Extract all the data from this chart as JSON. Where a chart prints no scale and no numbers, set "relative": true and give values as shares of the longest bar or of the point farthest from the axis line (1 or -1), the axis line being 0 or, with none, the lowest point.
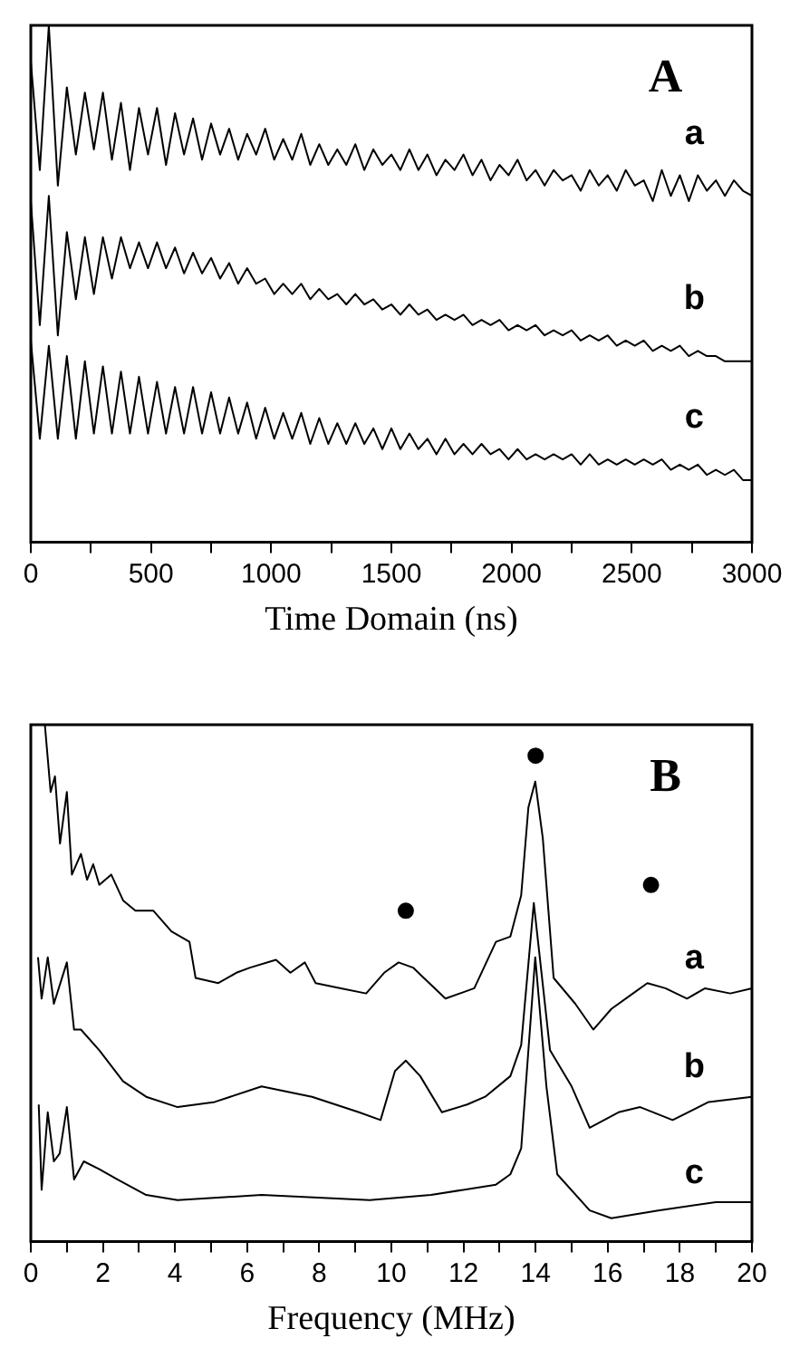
{
  "chart_data": [
    {
      "type": "line",
      "relative": true,
      "xlabel": "Time Domain (ns)",
      "annotations": [
        "A"
      ],
      "marker": "none",
      "grid": false,
      "legend": false,
      "tick_labels": "x",
      "xlim": [
        0,
        3000
      ],
      "xticks": [
        0,
        {
          "value": 250,
          "label": null
        },
        500,
        {
          "value": 750,
          "label": null
        },
        1000,
        {
          "value": 1250,
          "label": null
        },
        1500,
        {
          "value": 1750,
          "label": null
        },
        2000,
        {
          "value": 2250,
          "label": null
        },
        2500,
        {
          "value": 2750,
          "label": null
        },
        3000
      ],
      "x": [
        0,
        37.5,
        75,
        112.5,
        150,
        187.5,
        225,
        262.5,
        300,
        337.5,
        375,
        412.5,
        450,
        487.5,
        525,
        562.5,
        600,
        637.5,
        675,
        712.5,
        750,
        787.5,
        825,
        862.5,
        900,
        937.5,
        975,
        1012.5,
        1050,
        1087.5,
        1125,
        1162.5,
        1200,
        1237.5,
        1275,
        1312.5,
        1350,
        1387.5,
        1425,
        1462.5,
        1500,
        1537.5,
        1575,
        1612.5,
        1650,
        1687.5,
        1725,
        1762.5,
        1800,
        1837.5,
        1875,
        1912.5,
        1950,
        1987.5,
        2025,
        2062.5,
        2100,
        2137.5,
        2175,
        2212.5,
        2250,
        2287.5,
        2325,
        2362.5,
        2400,
        2437.5,
        2475,
        2512.5,
        2550,
        2587.5,
        2625,
        2662.5,
        2700,
        2737.5,
        2775,
        2812.5,
        2850,
        2887.5,
        2925,
        2962.5,
        3000
      ],
      "series": [
        {
          "name": "a",
          "color": "#000000",
          "values": [
            0.93,
            0.72,
            1.0,
            0.69,
            0.88,
            0.75,
            0.87,
            0.76,
            0.87,
            0.74,
            0.85,
            0.72,
            0.84,
            0.75,
            0.84,
            0.73,
            0.83,
            0.75,
            0.82,
            0.74,
            0.81,
            0.75,
            0.8,
            0.74,
            0.79,
            0.75,
            0.8,
            0.74,
            0.78,
            0.74,
            0.79,
            0.73,
            0.77,
            0.73,
            0.76,
            0.73,
            0.77,
            0.72,
            0.76,
            0.73,
            0.75,
            0.72,
            0.76,
            0.72,
            0.75,
            0.71,
            0.74,
            0.72,
            0.75,
            0.71,
            0.74,
            0.7,
            0.73,
            0.71,
            0.74,
            0.7,
            0.72,
            0.69,
            0.72,
            0.7,
            0.71,
            0.68,
            0.72,
            0.69,
            0.71,
            0.68,
            0.72,
            0.69,
            0.7,
            0.66,
            0.72,
            0.67,
            0.71,
            0.66,
            0.71,
            0.68,
            0.7,
            0.67,
            0.7,
            0.68,
            0.67
          ]
        },
        {
          "name": "b",
          "color": "#000000",
          "values": [
            0.66,
            0.42,
            0.67,
            0.4,
            0.6,
            0.47,
            0.59,
            0.48,
            0.59,
            0.51,
            0.59,
            0.53,
            0.58,
            0.53,
            0.58,
            0.53,
            0.57,
            0.52,
            0.56,
            0.52,
            0.55,
            0.51,
            0.54,
            0.5,
            0.53,
            0.5,
            0.51,
            0.48,
            0.5,
            0.48,
            0.5,
            0.47,
            0.49,
            0.47,
            0.48,
            0.46,
            0.48,
            0.46,
            0.47,
            0.45,
            0.46,
            0.44,
            0.46,
            0.44,
            0.45,
            0.43,
            0.44,
            0.43,
            0.44,
            0.42,
            0.43,
            0.42,
            0.43,
            0.41,
            0.42,
            0.41,
            0.42,
            0.4,
            0.41,
            0.4,
            0.41,
            0.39,
            0.4,
            0.39,
            0.4,
            0.38,
            0.39,
            0.38,
            0.39,
            0.37,
            0.38,
            0.37,
            0.38,
            0.36,
            0.37,
            0.36,
            0.36,
            0.35,
            0.35,
            0.35,
            0.35
          ]
        },
        {
          "name": "c",
          "color": "#000000",
          "values": [
            0.39,
            0.2,
            0.38,
            0.2,
            0.36,
            0.2,
            0.35,
            0.21,
            0.34,
            0.21,
            0.33,
            0.21,
            0.32,
            0.21,
            0.31,
            0.21,
            0.3,
            0.21,
            0.3,
            0.21,
            0.29,
            0.21,
            0.28,
            0.21,
            0.27,
            0.2,
            0.26,
            0.2,
            0.25,
            0.2,
            0.25,
            0.19,
            0.24,
            0.19,
            0.23,
            0.19,
            0.23,
            0.19,
            0.22,
            0.18,
            0.22,
            0.18,
            0.21,
            0.18,
            0.2,
            0.17,
            0.2,
            0.17,
            0.19,
            0.17,
            0.19,
            0.17,
            0.18,
            0.16,
            0.18,
            0.16,
            0.17,
            0.16,
            0.17,
            0.16,
            0.17,
            0.15,
            0.17,
            0.15,
            0.16,
            0.15,
            0.16,
            0.15,
            0.16,
            0.15,
            0.16,
            0.14,
            0.15,
            0.14,
            0.15,
            0.13,
            0.14,
            0.13,
            0.14,
            0.12,
            0.12
          ]
        }
      ]
    },
    {
      "type": "line",
      "relative": true,
      "xlabel": "Frequency (MHz)",
      "annotations": [
        "B"
      ],
      "marker": "none",
      "grid": false,
      "legend": false,
      "tick_labels": "x",
      "xlim": [
        0,
        20
      ],
      "xticks": [
        0,
        {
          "value": 1,
          "label": null
        },
        2,
        {
          "value": 3,
          "label": null
        },
        4,
        {
          "value": 5,
          "label": null
        },
        6,
        {
          "value": 7,
          "label": null
        },
        8,
        {
          "value": 9,
          "label": null
        },
        10,
        {
          "value": 11,
          "label": null
        },
        12,
        {
          "value": 13,
          "label": null
        },
        14,
        {
          "value": 15,
          "label": null
        },
        16,
        {
          "value": 17,
          "label": null
        },
        18,
        {
          "value": 19,
          "label": null
        },
        20
      ],
      "series": [
        {
          "name": "a",
          "color": "#000000",
          "x": [
            0.39,
            0.55,
            0.67,
            0.81,
            1.0,
            1.14,
            1.39,
            1.56,
            1.73,
            1.9,
            2.23,
            2.56,
            2.9,
            3.4,
            3.9,
            4.4,
            4.57,
            5.2,
            5.7,
            6.08,
            6.8,
            7.2,
            7.6,
            7.9,
            8.6,
            9.3,
            9.8,
            10.2,
            10.6,
            10.9,
            11.5,
            12.3,
            12.9,
            13.3,
            13.6,
            13.8,
            13.99,
            14.2,
            14.5,
            15.1,
            15.6,
            16.1,
            16.7,
            17.1,
            17.6,
            18.2,
            18.7,
            19.4,
            20
          ],
          "values": [
            1.0,
            0.87,
            0.9,
            0.77,
            0.87,
            0.71,
            0.75,
            0.7,
            0.73,
            0.69,
            0.71,
            0.66,
            0.64,
            0.64,
            0.6,
            0.58,
            0.51,
            0.5,
            0.52,
            0.53,
            0.545,
            0.52,
            0.54,
            0.5,
            0.49,
            0.48,
            0.52,
            0.54,
            0.53,
            0.51,
            0.47,
            0.49,
            0.58,
            0.59,
            0.67,
            0.84,
            0.89,
            0.78,
            0.51,
            0.46,
            0.41,
            0.45,
            0.48,
            0.5,
            0.49,
            0.47,
            0.49,
            0.48,
            0.49
          ]
        },
        {
          "name": "b",
          "color": "#000000",
          "x": [
            0.2,
            0.3,
            0.47,
            0.64,
            1.0,
            1.2,
            1.39,
            1.9,
            2.56,
            3.2,
            4.07,
            5.1,
            6.4,
            7.8,
            9.1,
            9.7,
            10.1,
            10.4,
            10.8,
            11.4,
            12.1,
            12.6,
            13.3,
            13.6,
            13.95,
            14.4,
            15.0,
            15.5,
            16.3,
            16.9,
            17.8,
            18.8,
            20
          ],
          "values": [
            0.55,
            0.47,
            0.55,
            0.46,
            0.54,
            0.41,
            0.41,
            0.37,
            0.31,
            0.28,
            0.26,
            0.27,
            0.3,
            0.28,
            0.25,
            0.235,
            0.33,
            0.35,
            0.32,
            0.25,
            0.265,
            0.28,
            0.32,
            0.38,
            0.655,
            0.37,
            0.3,
            0.22,
            0.25,
            0.26,
            0.235,
            0.27,
            0.28
          ]
        },
        {
          "name": "c",
          "color": "#000000",
          "x": [
            0.22,
            0.3,
            0.47,
            0.64,
            0.8,
            1.0,
            1.2,
            1.47,
            1.9,
            2.4,
            3.2,
            4.07,
            6.4,
            9.4,
            11.1,
            12.9,
            13.3,
            13.6,
            13.99,
            14.3,
            14.6,
            15.5,
            16.1,
            17.4,
            19.0,
            20
          ],
          "values": [
            0.265,
            0.1,
            0.25,
            0.155,
            0.17,
            0.26,
            0.12,
            0.155,
            0.14,
            0.12,
            0.09,
            0.08,
            0.09,
            0.08,
            0.09,
            0.11,
            0.13,
            0.18,
            0.55,
            0.3,
            0.13,
            0.06,
            0.045,
            0.06,
            0.076,
            0.076
          ]
        },
        {
          "type": "scatter",
          "marker": "circle",
          "color": "#000000",
          "x": [
            10.4,
            14.0,
            17.2
          ],
          "values": [
            0.64,
            0.94,
            0.69
          ]
        }
      ]
    }
  ]
}
